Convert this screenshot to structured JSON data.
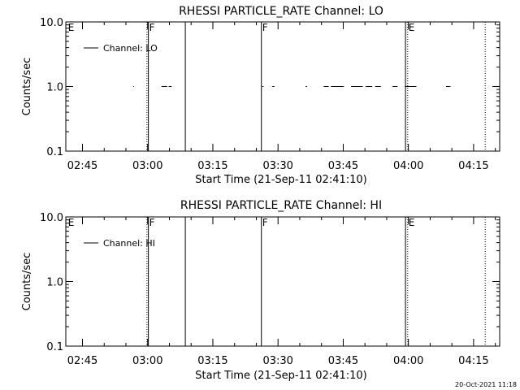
{
  "chart_data": [
    {
      "type": "line",
      "title": "RHESSI PARTICLE_RATE Channel: LO",
      "xlabel": "Start Time (21-Sep-11 02:41:10)",
      "ylabel": "Counts/sec",
      "y_scale": "log",
      "ylim": [
        0.1,
        10.0
      ],
      "xlim": [
        "02:41:10",
        "04:21:00"
      ],
      "x_ticks": [
        "02:45",
        "03:00",
        "03:15",
        "03:30",
        "03:45",
        "04:00",
        "04:15"
      ],
      "y_ticks": [
        "0.1",
        "1.0",
        "10.0"
      ],
      "legend": "top-left",
      "series": [
        {
          "name": "Channel: LO",
          "color": "#000000",
          "segments": [
            {
              "start": "02:56:40",
              "end": "02:56:50",
              "value": 1.0
            },
            {
              "start": "03:03:10",
              "end": "03:04:30",
              "value": 1.0
            },
            {
              "start": "03:04:50",
              "end": "03:05:30",
              "value": 1.0
            },
            {
              "start": "03:26:20",
              "end": "03:26:40",
              "value": 1.0
            },
            {
              "start": "03:28:40",
              "end": "03:29:10",
              "value": 1.0
            },
            {
              "start": "03:36:20",
              "end": "03:36:40",
              "value": 1.0
            },
            {
              "start": "03:40:30",
              "end": "03:41:40",
              "value": 1.0
            },
            {
              "start": "03:42:10",
              "end": "03:45:10",
              "value": 1.0
            },
            {
              "start": "03:46:50",
              "end": "03:49:30",
              "value": 1.0
            },
            {
              "start": "03:50:10",
              "end": "03:51:40",
              "value": 1.0
            },
            {
              "start": "03:52:20",
              "end": "03:53:40",
              "value": 1.0
            },
            {
              "start": "03:56:20",
              "end": "03:57:30",
              "value": 1.0
            },
            {
              "start": "03:59:10",
              "end": "04:01:50",
              "value": 1.0
            },
            {
              "start": "04:08:40",
              "end": "04:09:40",
              "value": 1.0
            }
          ]
        }
      ],
      "markers": [
        {
          "time": "02:41:30",
          "style": "none",
          "label": "E"
        },
        {
          "time": "02:59:50",
          "style": "dotted",
          "label": ""
        },
        {
          "time": "03:00:10",
          "style": "solid",
          "label": "F"
        },
        {
          "time": "03:08:40",
          "style": "solid",
          "label": ""
        },
        {
          "time": "03:26:10",
          "style": "solid",
          "label": "F"
        },
        {
          "time": "03:59:20",
          "style": "solid",
          "label": ""
        },
        {
          "time": "03:59:50",
          "style": "dotted",
          "label": "E"
        },
        {
          "time": "04:17:40",
          "style": "dotted",
          "label": ""
        }
      ]
    },
    {
      "type": "line",
      "title": "RHESSI PARTICLE_RATE Channel: HI",
      "xlabel": "Start Time (21-Sep-11 02:41:10)",
      "ylabel": "Counts/sec",
      "y_scale": "log",
      "ylim": [
        0.1,
        10.0
      ],
      "xlim": [
        "02:41:10",
        "04:21:00"
      ],
      "x_ticks": [
        "02:45",
        "03:00",
        "03:15",
        "03:30",
        "03:45",
        "04:00",
        "04:15"
      ],
      "y_ticks": [
        "0.1",
        "1.0",
        "10.0"
      ],
      "legend": "top-left",
      "series": [
        {
          "name": "Channel: HI",
          "color": "#000000",
          "segments": []
        }
      ],
      "markers": [
        {
          "time": "02:41:30",
          "style": "none",
          "label": "E"
        },
        {
          "time": "02:59:50",
          "style": "dotted",
          "label": ""
        },
        {
          "time": "03:00:10",
          "style": "solid",
          "label": "F"
        },
        {
          "time": "03:08:40",
          "style": "solid",
          "label": ""
        },
        {
          "time": "03:26:10",
          "style": "solid",
          "label": "F"
        },
        {
          "time": "03:59:20",
          "style": "solid",
          "label": ""
        },
        {
          "time": "03:59:50",
          "style": "dotted",
          "label": "E"
        },
        {
          "time": "04:17:40",
          "style": "dotted",
          "label": ""
        }
      ]
    }
  ],
  "footer": {
    "timestamp": "20-Oct-2021 11:18"
  }
}
